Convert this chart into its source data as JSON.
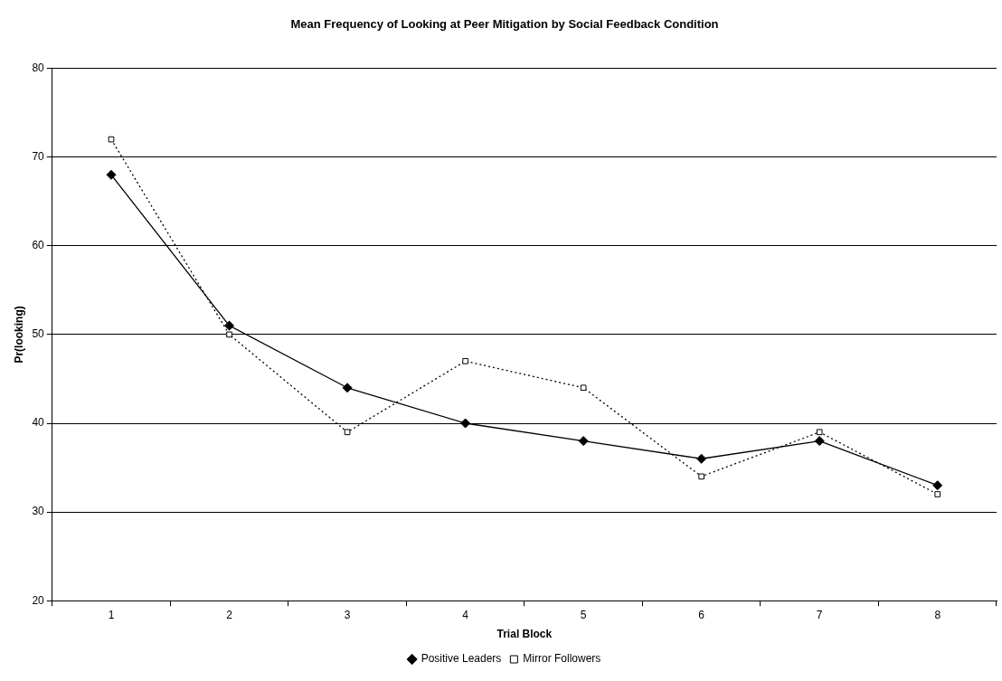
{
  "chart_data": {
    "type": "line",
    "title": "Mean Frequency of Looking at Peer Mitigation by Social Feedback Condition",
    "xlabel": "Trial Block",
    "ylabel": "Pr(looking)",
    "categories": [
      "1",
      "2",
      "3",
      "4",
      "5",
      "6",
      "7",
      "8"
    ],
    "series": [
      {
        "name": "Positive Leaders",
        "color": "#000000",
        "marker": "diamond",
        "line_style": "solid",
        "values": [
          68,
          51,
          44,
          40,
          38,
          36,
          38,
          33
        ]
      },
      {
        "name": "Mirror Followers",
        "color": "#000000",
        "marker": "square",
        "line_style": "dotted",
        "values": [
          72,
          50,
          39,
          47,
          44,
          34,
          39,
          32
        ]
      }
    ],
    "ylim": [
      20,
      80
    ],
    "yticks": [
      20,
      30,
      40,
      50,
      60,
      70,
      80
    ],
    "grid": "y",
    "legend": "bottom"
  }
}
